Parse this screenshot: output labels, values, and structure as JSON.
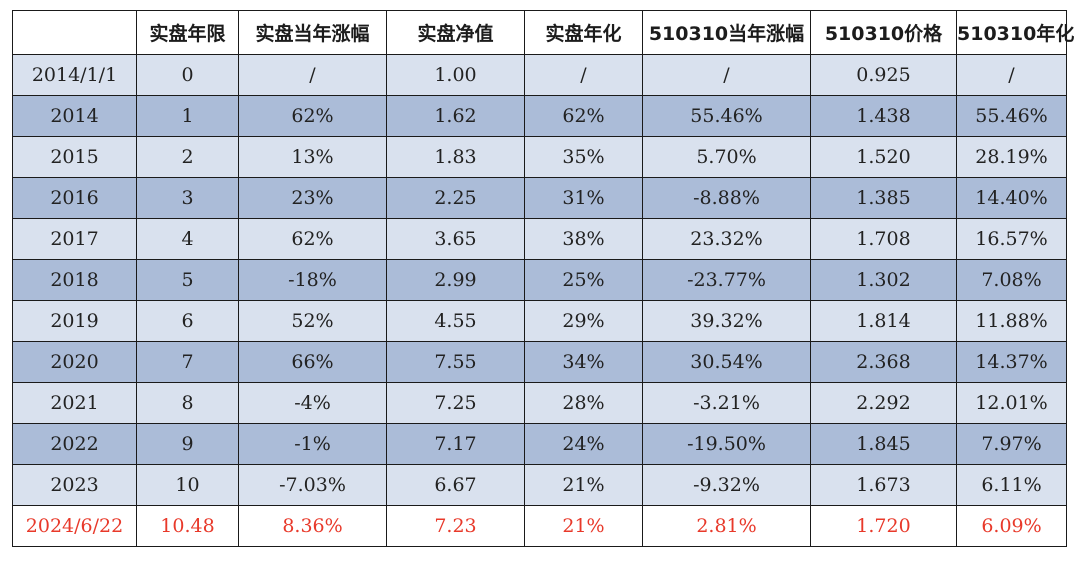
{
  "colors": {
    "header_bg": "#ffffff",
    "row_light": "#d9e1ee",
    "row_dark": "#abbcd8",
    "final_row_text": "#e8392a",
    "border": "#1a1a1a"
  },
  "table": {
    "headers": [
      "",
      "实盘年限",
      "实盘当年涨幅",
      "实盘净值",
      "实盘年化",
      "510310当年涨幅",
      "510310价格",
      "510310年化"
    ],
    "rows": [
      [
        "2014/1/1",
        "0",
        "/",
        "1.00",
        "/",
        "/",
        "0.925",
        "/"
      ],
      [
        "2014",
        "1",
        "62%",
        "1.62",
        "62%",
        "55.46%",
        "1.438",
        "55.46%"
      ],
      [
        "2015",
        "2",
        "13%",
        "1.83",
        "35%",
        "5.70%",
        "1.520",
        "28.19%"
      ],
      [
        "2016",
        "3",
        "23%",
        "2.25",
        "31%",
        "-8.88%",
        "1.385",
        "14.40%"
      ],
      [
        "2017",
        "4",
        "62%",
        "3.65",
        "38%",
        "23.32%",
        "1.708",
        "16.57%"
      ],
      [
        "2018",
        "5",
        "-18%",
        "2.99",
        "25%",
        "-23.77%",
        "1.302",
        "7.08%"
      ],
      [
        "2019",
        "6",
        "52%",
        "4.55",
        "29%",
        "39.32%",
        "1.814",
        "11.88%"
      ],
      [
        "2020",
        "7",
        "66%",
        "7.55",
        "34%",
        "30.54%",
        "2.368",
        "14.37%"
      ],
      [
        "2021",
        "8",
        "-4%",
        "7.25",
        "28%",
        "-3.21%",
        "2.292",
        "12.01%"
      ],
      [
        "2022",
        "9",
        "-1%",
        "7.17",
        "24%",
        "-19.50%",
        "1.845",
        "7.97%"
      ],
      [
        "2023",
        "10",
        "-7.03%",
        "6.67",
        "21%",
        "-9.32%",
        "1.673",
        "6.11%"
      ],
      [
        "2024/6/22",
        "10.48",
        "8.36%",
        "7.23",
        "21%",
        "2.81%",
        "1.720",
        "6.09%"
      ]
    ]
  }
}
